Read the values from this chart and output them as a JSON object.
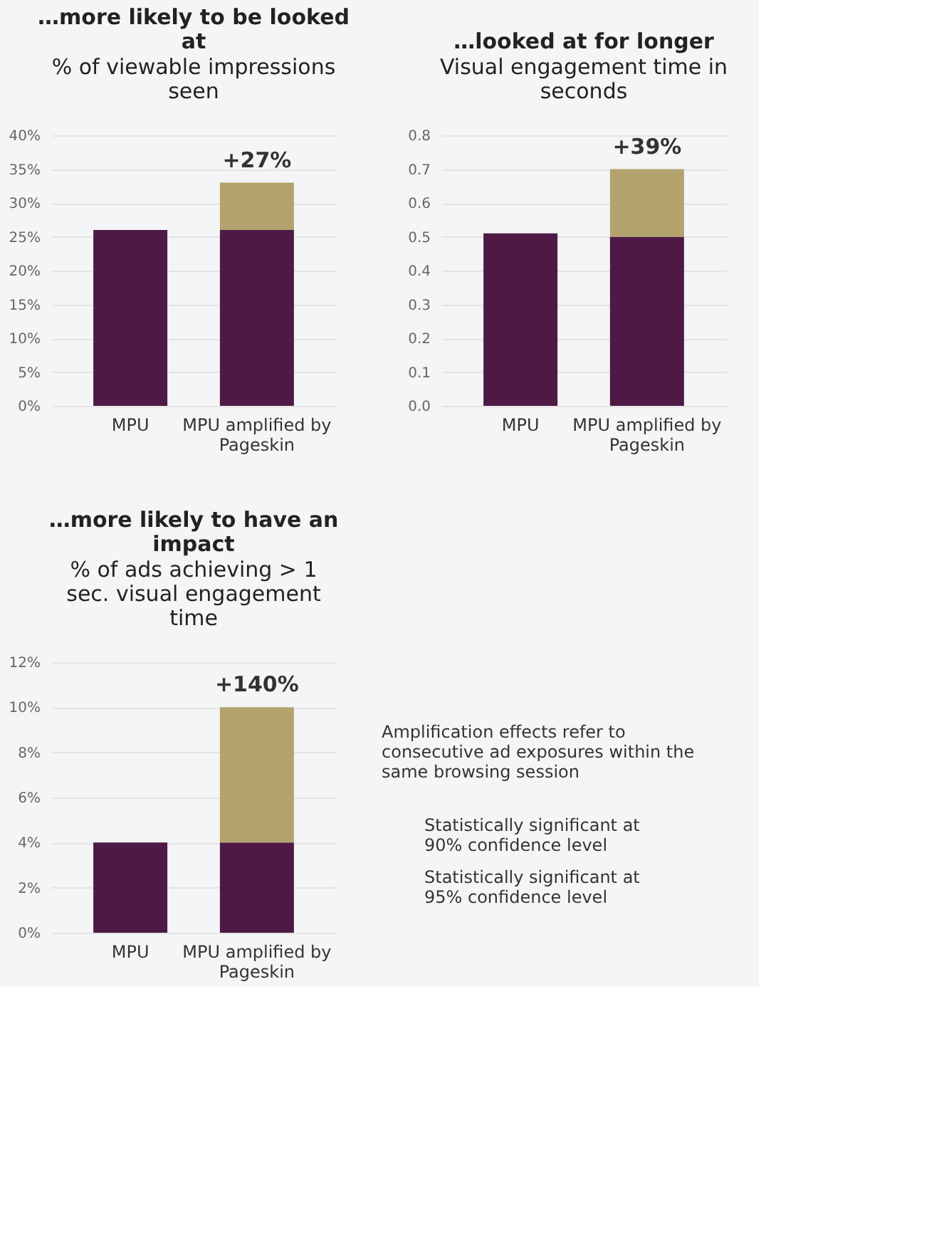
{
  "chart_data": [
    {
      "type": "bar",
      "title": "…more likely to be looked at",
      "subtitle": "% of viewable impressions seen",
      "categories": [
        "MPU",
        "MPU amplified by Pageskin"
      ],
      "stacked": true,
      "series": [
        {
          "color": "#4e1a45",
          "values": [
            26,
            26
          ]
        },
        {
          "color": "#b3a36e",
          "values": [
            null,
            7
          ]
        }
      ],
      "ylim": [
        0,
        40
      ],
      "yticks": [
        {
          "value": 0,
          "label": "0%"
        },
        {
          "value": 5,
          "label": "5%"
        },
        {
          "value": 10,
          "label": "10%"
        },
        {
          "value": 15,
          "label": "15%"
        },
        {
          "value": 20,
          "label": "20%"
        },
        {
          "value": 25,
          "label": "25%"
        },
        {
          "value": 30,
          "label": "30%"
        },
        {
          "value": 35,
          "label": "35%"
        },
        {
          "value": 40,
          "label": "40%"
        }
      ],
      "grid": "y",
      "annotations": [
        {
          "text": "+27%",
          "x": "MPU amplified by Pageskin",
          "y": 33
        }
      ]
    },
    {
      "type": "bar",
      "title": "…looked at for longer",
      "subtitle": "Visual engagement time in seconds",
      "categories": [
        "MPU",
        "MPU amplified by Pageskin"
      ],
      "stacked": true,
      "series": [
        {
          "color": "#4e1a45",
          "values": [
            0.51,
            0.5
          ]
        },
        {
          "color": "#b3a36e",
          "values": [
            null,
            0.2
          ]
        }
      ],
      "ylim": [
        0,
        0.8
      ],
      "yticks": [
        {
          "value": 0,
          "label": "0.0"
        },
        0.1,
        0.2,
        0.3,
        0.4,
        0.5,
        0.6,
        0.7,
        0.8
      ],
      "grid": "y",
      "annotations": [
        {
          "text": "+39%",
          "x": "MPU amplified by Pageskin",
          "y": 0.7
        }
      ]
    },
    {
      "type": "bar",
      "title": "…more likely to have an impact",
      "subtitle": "% of ads achieving > 1 sec. visual engagement time",
      "categories": [
        "MPU",
        "MPU amplified by Pageskin"
      ],
      "stacked": true,
      "series": [
        {
          "color": "#4e1a45",
          "values": [
            4,
            4
          ]
        },
        {
          "color": "#b3a36e",
          "values": [
            null,
            6
          ]
        }
      ],
      "ylim": [
        0,
        12
      ],
      "yticks": [
        {
          "value": 0,
          "label": "0%"
        },
        {
          "value": 2,
          "label": "2%"
        },
        {
          "value": 4,
          "label": "4%"
        },
        {
          "value": 6,
          "label": "6%"
        },
        {
          "value": 8,
          "label": "8%"
        },
        {
          "value": 10,
          "label": "10%"
        },
        {
          "value": 12,
          "label": "12%"
        }
      ],
      "grid": "y",
      "annotations": [
        {
          "text": "+140%",
          "x": "MPU amplified by Pageskin",
          "y": 10
        }
      ]
    },
    {
      "type": "other",
      "annotations": [
        "Amplification effects refer to consecutive ad exposures within the same browsing session",
        "Statistically significant at 90% confidence level",
        "Statistically significant at 95% confidence level"
      ]
    }
  ]
}
